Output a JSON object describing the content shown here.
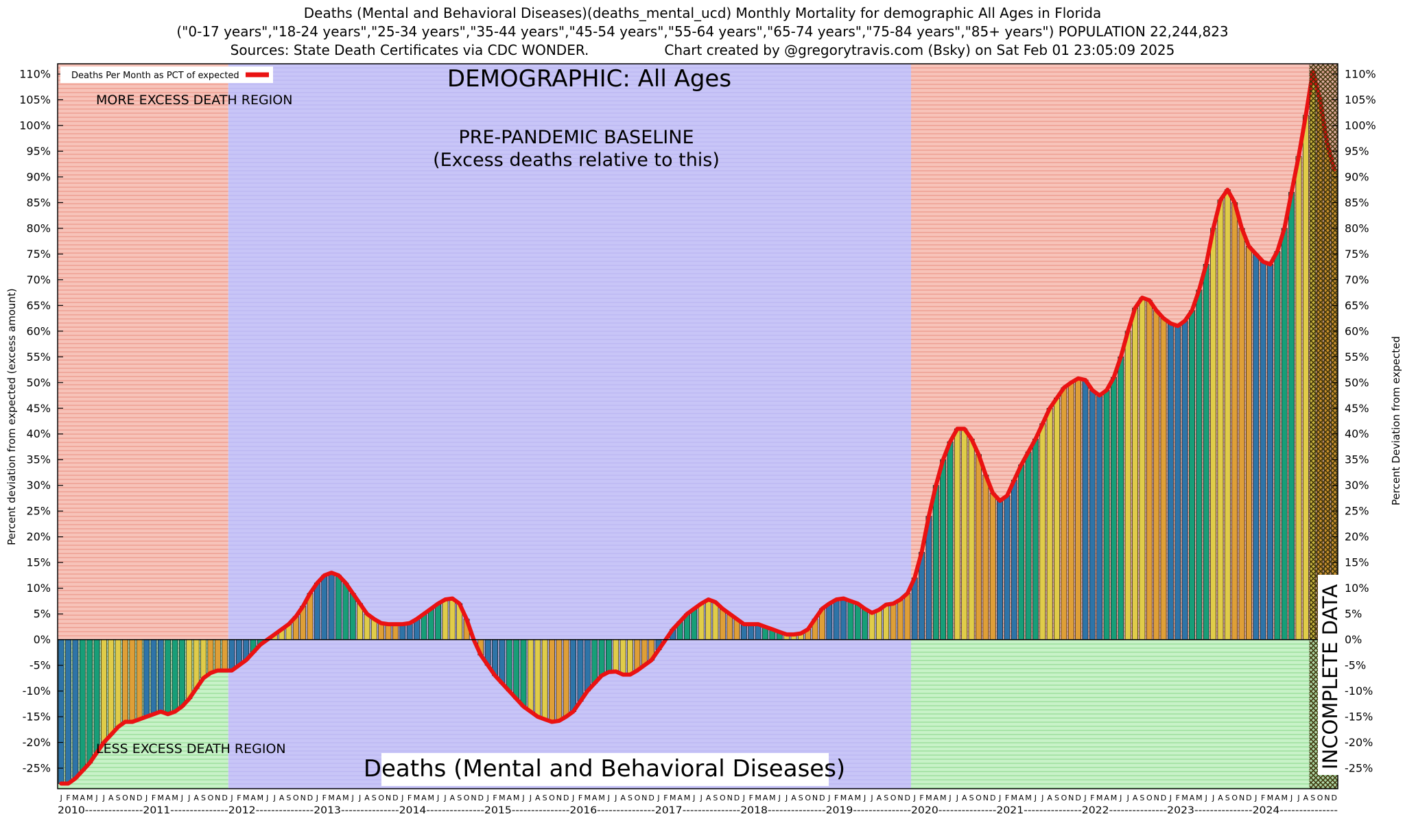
{
  "header": {
    "line1": "Deaths (Mental and Behavioral Diseases)(deaths_mental_ucd) Monthly Mortality for demographic All Ages in Florida",
    "line2": "(\"0-17 years\",\"18-24 years\",\"25-34 years\",\"35-44 years\",\"45-54 years\",\"55-64 years\",\"65-74 years\",\"75-84 years\",\"85+ years\") POPULATION 22,244,823",
    "sources": "Sources: State Death Certificates via CDC WONDER.",
    "credit": "Chart created by @gregorytravis.com (Bsky) on Sat Feb 01 23:05:09 2025"
  },
  "chart_data": {
    "type": "bar",
    "title": "Deaths (Mental and Behavioral Diseases) Monthly Mortality, All Ages, Florida",
    "legend": "Deaths Per Month as PCT of expected",
    "bottom_title": "Deaths (Mental and Behavioral Diseases)",
    "ylabel_left": "Percent deviation from expected (excess amount)",
    "ylabel_right": "Percent Deviation from expected",
    "annotations": {
      "more_excess": "MORE EXCESS DEATH REGION",
      "less_excess": "LESS EXCESS DEATH REGION",
      "demographic": "DEMOGRAPHIC: All Ages",
      "baseline_1": "PRE-PANDEMIC BASELINE",
      "baseline_2": "(Excess deaths relative to this)",
      "incomplete": "INCOMPLETE DATA"
    },
    "ylim": [
      -29,
      112
    ],
    "yticks": [
      -25,
      -20,
      -15,
      -10,
      -5,
      0,
      5,
      10,
      15,
      20,
      25,
      30,
      35,
      40,
      45,
      50,
      55,
      60,
      65,
      70,
      75,
      80,
      85,
      90,
      95,
      100,
      105,
      110
    ],
    "ytick_suffix": "%",
    "years": [
      2010,
      2011,
      2012,
      2013,
      2014,
      2015,
      2016,
      2017,
      2018,
      2019,
      2020,
      2021,
      2022,
      2023,
      2024
    ],
    "month_letters": [
      "J",
      "F",
      "M",
      "A",
      "M",
      "J",
      "J",
      "A",
      "S",
      "O",
      "N",
      "D"
    ],
    "values": [
      -28,
      -28,
      -27,
      -25.5,
      -24,
      -22,
      -20,
      -18.5,
      -17,
      -16,
      -16,
      -15.5,
      -15,
      -14.5,
      -14,
      -14.5,
      -14,
      -13,
      -11.5,
      -9.5,
      -7.5,
      -6.5,
      -6,
      -6,
      -6,
      -5,
      -4,
      -2.5,
      -1,
      0,
      1,
      2,
      3,
      4.5,
      6.5,
      9,
      11,
      12.5,
      13,
      12.5,
      11,
      9,
      7,
      5,
      4,
      3.2,
      3,
      3,
      3,
      3.2,
      4,
      5,
      6,
      7,
      7.8,
      8,
      7,
      4,
      0,
      -3,
      -5,
      -7,
      -8.5,
      -10,
      -11.5,
      -13,
      -14,
      -15,
      -15.5,
      -16,
      -15.8,
      -15,
      -14,
      -12,
      -10,
      -8.5,
      -7,
      -6.3,
      -6.2,
      -6.8,
      -6.8,
      -6,
      -5,
      -4,
      -2,
      0,
      2,
      3.5,
      5,
      6,
      7,
      7.8,
      7.3,
      6,
      5,
      4,
      3,
      3,
      3,
      2.5,
      2,
      1.5,
      1,
      1,
      1.2,
      2,
      4,
      6,
      7,
      7.8,
      8,
      7.5,
      7,
      6,
      5.2,
      5.8,
      6.8,
      7,
      7.8,
      9,
      12,
      17,
      24,
      30,
      35,
      38.5,
      41,
      41,
      39,
      36,
      32,
      28.5,
      27,
      28,
      31,
      34,
      36.5,
      39,
      42,
      45,
      47,
      49,
      50,
      50.8,
      50.5,
      48.5,
      47.5,
      48.5,
      51,
      55,
      60,
      64.5,
      66.5,
      66,
      64,
      62.5,
      61.5,
      61,
      62,
      64,
      68,
      73,
      80,
      85.5,
      87.5,
      85,
      80,
      76.5,
      75,
      73.5,
      73,
      75.5,
      80,
      87,
      94,
      102,
      110.5,
      105,
      96.5,
      91.5
    ],
    "baseline_start_index": 24,
    "baseline_end_index": 120,
    "incomplete_start_index": 176,
    "line_color": "#ea1212",
    "quarter_colors": [
      "#2e74a8",
      "#179e78",
      "#e0cc49",
      "#df9f37"
    ],
    "colors": {
      "excess_bg": "#f7c3b9",
      "excess_line": "#eea195",
      "less_bg": "#c8f2c8",
      "less_line": "#a0e0a0",
      "baseline_bg": "#c8c5f7",
      "baseline_line": "#bebaf3",
      "incomplete_hatch": "#3c3208",
      "axis": "#000000"
    },
    "legend_position": "top-left",
    "grid": false
  }
}
